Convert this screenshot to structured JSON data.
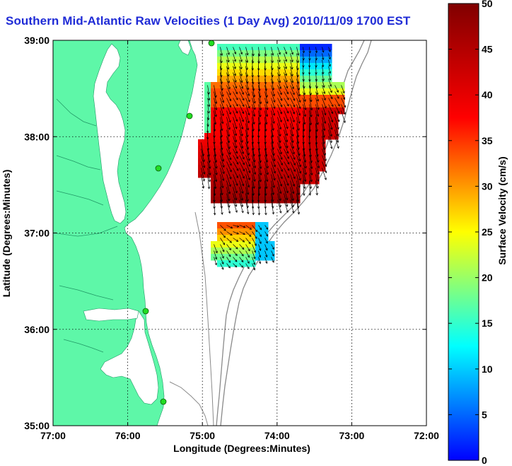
{
  "title": "Southern Mid-Atlantic Raw Velocities (1 Day Avg) 2010/11/09 1700 EST",
  "map": {
    "xlabel": "Longitude (Degrees:Minutes)",
    "ylabel": "Latitude (Degrees:Minutes)",
    "lon_ticks": [
      "77:00",
      "76:00",
      "75:00",
      "74:00",
      "73:00",
      "72:00"
    ],
    "lat_ticks": [
      "39:00",
      "38:00",
      "37:00",
      "36:00",
      "35:00"
    ],
    "lon_range": [
      -77,
      -72
    ],
    "lat_range": [
      35,
      39
    ],
    "grid": "dotted",
    "land_color": "#5ef7a8",
    "water_color": "#ffffff",
    "arrow_color": "#000000",
    "station_color": "#22dd22"
  },
  "colorbar": {
    "label": "Surface Velocity (cm/s)",
    "ticks": [
      "0",
      "5",
      "10",
      "15",
      "20",
      "25",
      "30",
      "35",
      "40",
      "45",
      "50"
    ],
    "range": [
      0,
      50
    ]
  }
}
